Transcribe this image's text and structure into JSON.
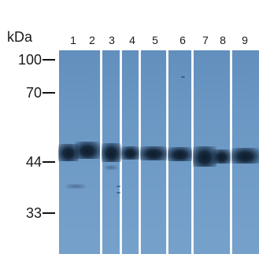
{
  "unit_label": "kDa",
  "markers": [
    "100",
    "70",
    "44",
    "33"
  ],
  "lanes": [
    "1",
    "2",
    "3",
    "4",
    "5",
    "6",
    "7",
    "8",
    "9"
  ]
}
